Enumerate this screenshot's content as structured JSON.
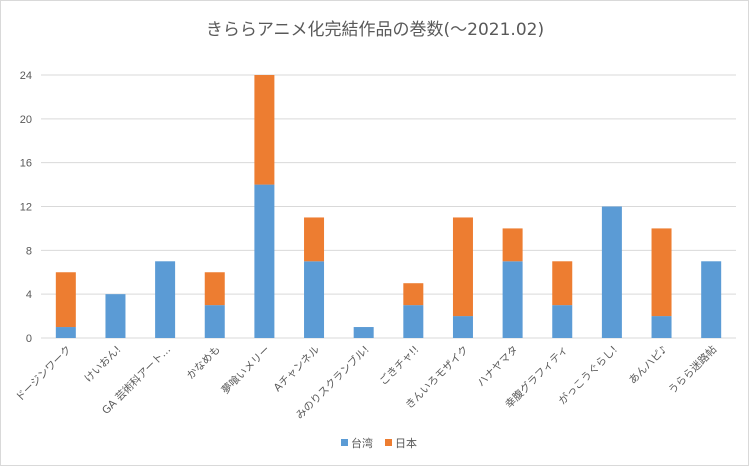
{
  "chart_data": {
    "type": "bar",
    "stacked": true,
    "title": "きららアニメ化完結作品の巻数(～2021.02)",
    "categories": [
      "ドージンワーク",
      "けいおん!",
      "GA 芸術科アート…",
      "かなめも",
      "夢喰いメリー",
      "Aチャンネル",
      "みのりスクランブル!",
      "ごきチャ!!",
      "きんいろモザイク",
      "ハナヤマタ",
      "幸腹グラフィティ",
      "がっこうぐらし!",
      "あんハピ♪",
      "うらら迷路帖"
    ],
    "series": [
      {
        "name": "台湾",
        "color": "#5b9bd5",
        "values": [
          1,
          4,
          7,
          3,
          14,
          7,
          1,
          3,
          2,
          7,
          3,
          12,
          2,
          7
        ]
      },
      {
        "name": "日本",
        "color": "#ed7d31",
        "values": [
          5,
          0,
          0,
          3,
          10,
          4,
          0,
          2,
          9,
          3,
          4,
          0,
          8,
          0
        ]
      }
    ],
    "ylim": [
      0,
      24
    ],
    "yticks": [
      0,
      4,
      8,
      12,
      16,
      20,
      24
    ],
    "grid": true,
    "legend_position": "bottom"
  }
}
